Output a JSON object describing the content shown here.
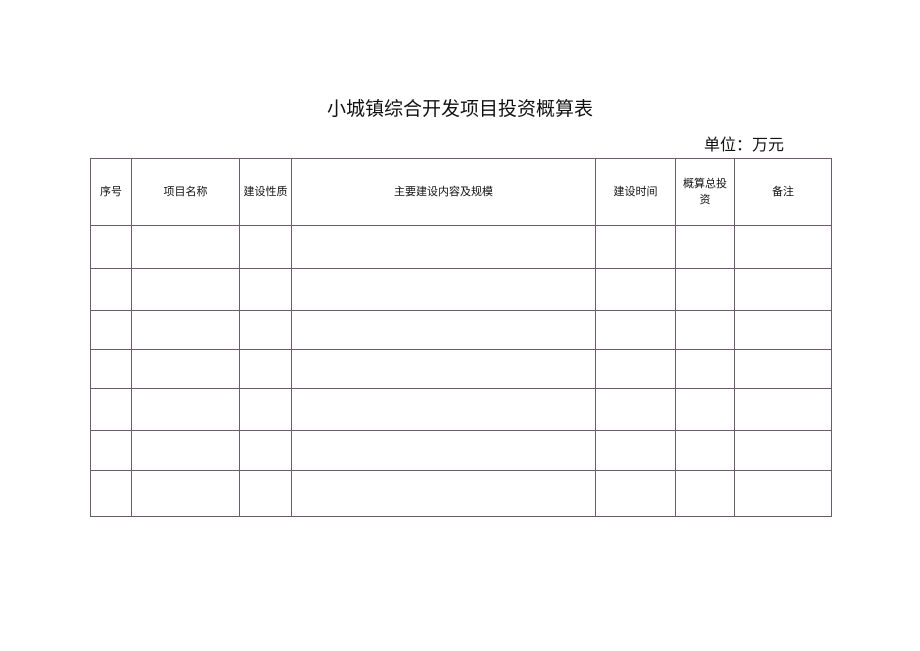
{
  "title": "小城镇综合开发项目投资概算表",
  "unit": "单位：万元",
  "table": {
    "headers": [
      "序号",
      "项目名称",
      "建设性质",
      "主要建设内容及规模",
      "建设时间",
      "概算总投资",
      "备注"
    ],
    "rows": [
      [
        "",
        "",
        "",
        "",
        "",
        "",
        ""
      ],
      [
        "",
        "",
        "",
        "",
        "",
        "",
        ""
      ],
      [
        "",
        "",
        "",
        "",
        "",
        "",
        ""
      ],
      [
        "",
        "",
        "",
        "",
        "",
        "",
        ""
      ],
      [
        "",
        "",
        "",
        "",
        "",
        "",
        ""
      ],
      [
        "",
        "",
        "",
        "",
        "",
        "",
        ""
      ],
      [
        "",
        "",
        "",
        "",
        "",
        "",
        ""
      ]
    ]
  }
}
